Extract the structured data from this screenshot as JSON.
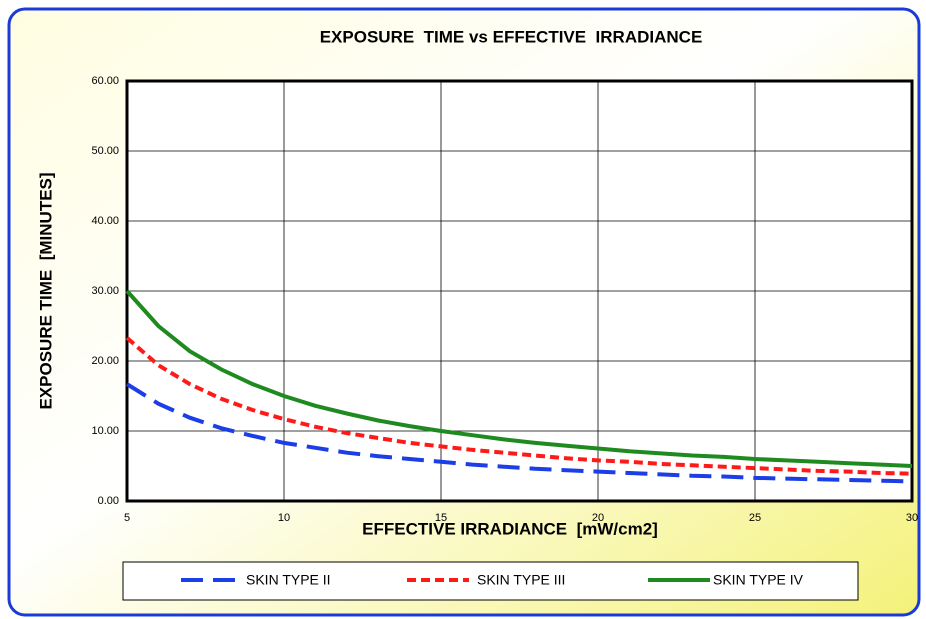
{
  "chart_data": {
    "type": "line",
    "title": "EXPOSURE  TIME vs EFFECTIVE  IRRADIANCE",
    "x_label": "EFFECTIVE IRRADIANCE  [mW/cm2]",
    "y_label": "EXPOSURE TIME  [MINUTES]",
    "x": [
      5,
      6,
      7,
      8,
      9,
      10,
      11,
      12,
      13,
      14,
      15,
      16,
      17,
      18,
      19,
      20,
      21,
      22,
      23,
      24,
      25,
      26,
      27,
      28,
      29,
      30
    ],
    "series": [
      {
        "name": "SKIN TYPE II",
        "color": "#1c3ee6",
        "dash": "long",
        "values": [
          16.7,
          13.9,
          11.9,
          10.4,
          9.3,
          8.3,
          7.6,
          6.9,
          6.4,
          6.0,
          5.6,
          5.2,
          4.9,
          4.6,
          4.4,
          4.2,
          4.0,
          3.8,
          3.6,
          3.5,
          3.3,
          3.2,
          3.1,
          3.0,
          2.9,
          2.8
        ]
      },
      {
        "name": "SKIN TYPE III",
        "color": "#ff1a1a",
        "dash": "short",
        "values": [
          23.3,
          19.4,
          16.7,
          14.6,
          13.0,
          11.7,
          10.6,
          9.7,
          9.0,
          8.3,
          7.8,
          7.3,
          6.9,
          6.5,
          6.1,
          5.8,
          5.6,
          5.3,
          5.1,
          4.9,
          4.7,
          4.5,
          4.3,
          4.2,
          4.0,
          3.9
        ]
      },
      {
        "name": "SKIN TYPE IV",
        "color": "#1f8a1f",
        "dash": "solid",
        "values": [
          30,
          25,
          21.4,
          18.8,
          16.7,
          15,
          13.6,
          12.5,
          11.5,
          10.7,
          10,
          9.4,
          8.8,
          8.3,
          7.9,
          7.5,
          7.1,
          6.8,
          6.5,
          6.3,
          6,
          5.8,
          5.6,
          5.4,
          5.2,
          5
        ]
      }
    ],
    "xlim": [
      5,
      30
    ],
    "xticks": [
      5,
      10,
      15,
      20,
      25,
      30
    ],
    "ylim": [
      0,
      60
    ],
    "yticks": [
      {
        "value": 0,
        "label": "0.00"
      },
      {
        "value": 10,
        "label": "10.00"
      },
      {
        "value": 20,
        "label": "20.00"
      },
      {
        "value": 30,
        "label": "30.00"
      },
      {
        "value": 40,
        "label": "40.00"
      },
      {
        "value": 50,
        "label": "50.00"
      },
      {
        "value": 60,
        "label": "60.00"
      }
    ],
    "grid": true
  }
}
